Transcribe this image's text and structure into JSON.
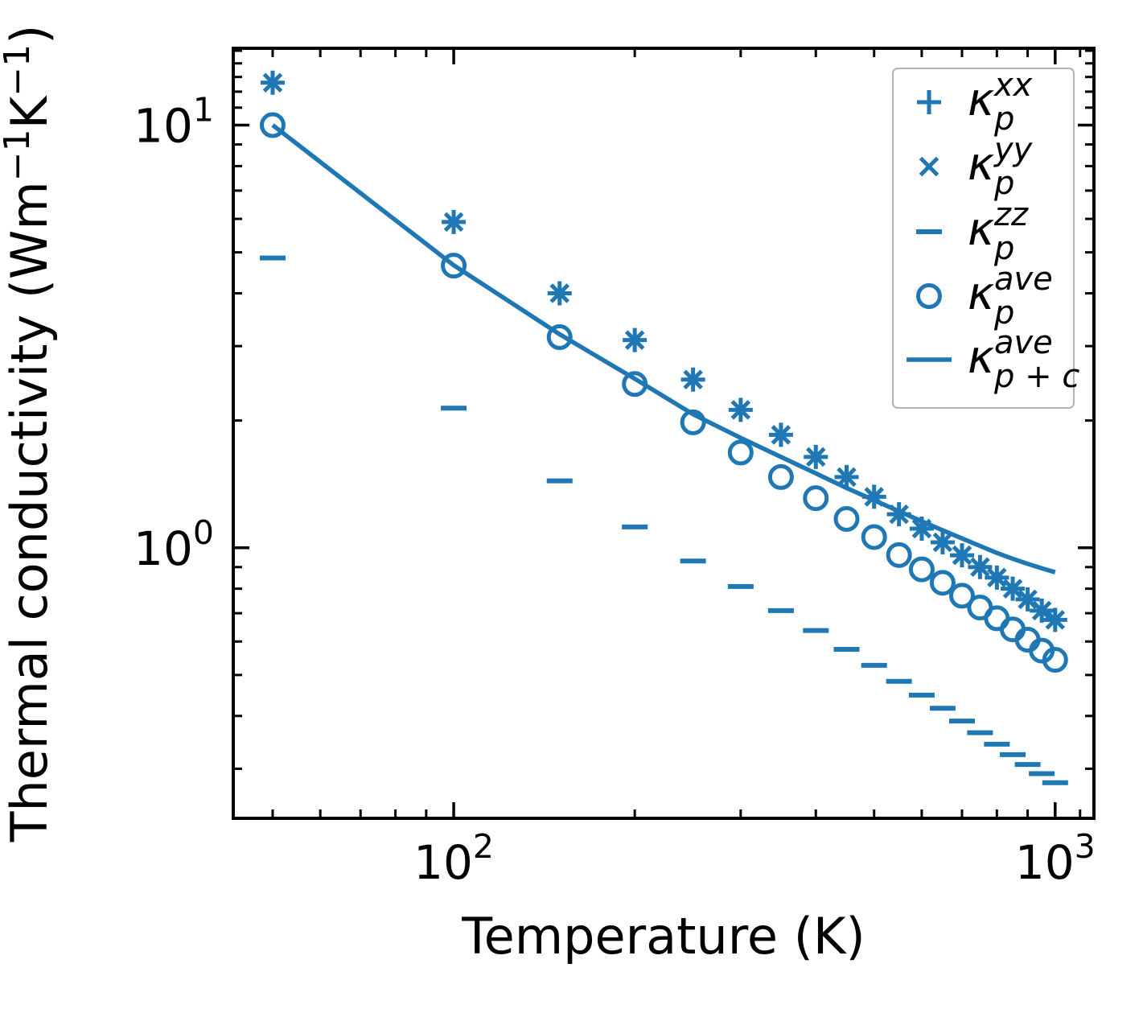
{
  "figure": {
    "background": "#ffffff",
    "series_color": "#1f77b4",
    "axis_color": "#000000",
    "legend_border_color": "#b3b3b3"
  },
  "chart_data": {
    "type": "scatter+line",
    "x_scale": "log",
    "y_scale": "log",
    "xlabel": "Temperature (K)",
    "ylabel_parts": [
      {
        "text": "Thermal conductivity (Wm"
      },
      {
        "sup": "−1"
      },
      {
        "text": "K"
      },
      {
        "sup": "−1"
      },
      {
        "text": ")"
      }
    ],
    "xlim": [
      43,
      1160
    ],
    "ylim": [
      0.229,
      15.2
    ],
    "grid": false,
    "legend_position": "upper right",
    "x_major_ticks": [
      100,
      1000
    ],
    "x_minor_ticks": [
      50,
      60,
      70,
      80,
      90,
      200,
      300,
      400,
      500,
      600,
      700,
      800,
      900,
      1100
    ],
    "y_major_ticks": [
      1,
      10
    ],
    "y_minor_ticks": [
      0.3,
      0.4,
      0.5,
      0.6,
      0.7,
      0.8,
      0.9,
      2,
      3,
      4,
      5,
      6,
      7,
      8,
      9,
      11,
      12,
      13,
      14,
      15
    ],
    "x_tick_labels": [
      {
        "at": 100,
        "mantissa": "10",
        "exponent": "2"
      },
      {
        "at": 1000,
        "mantissa": "10",
        "exponent": "3"
      }
    ],
    "y_tick_labels": [
      {
        "at": 10,
        "mantissa": "10",
        "exponent": "1"
      },
      {
        "at": 1,
        "mantissa": "10",
        "exponent": "0"
      }
    ],
    "temperatures": [
      50,
      100,
      150,
      200,
      250,
      300,
      350,
      400,
      450,
      500,
      550,
      600,
      650,
      700,
      750,
      800,
      850,
      900,
      950,
      1000
    ],
    "series": [
      {
        "name": "kappa_p_xx",
        "marker": "plus",
        "label": {
          "base": "κ",
          "sup": "xx",
          "sub": "p"
        },
        "values": [
          12.6,
          5.9,
          4.0,
          3.1,
          2.5,
          2.12,
          1.85,
          1.64,
          1.47,
          1.32,
          1.2,
          1.11,
          1.03,
          0.96,
          0.9,
          0.85,
          0.8,
          0.755,
          0.71,
          0.675
        ]
      },
      {
        "name": "kappa_p_yy",
        "marker": "cross",
        "label": {
          "base": "κ",
          "sup": "yy",
          "sub": "p"
        },
        "values": [
          12.6,
          5.9,
          4.0,
          3.1,
          2.5,
          2.12,
          1.85,
          1.64,
          1.47,
          1.32,
          1.2,
          1.11,
          1.03,
          0.96,
          0.9,
          0.85,
          0.8,
          0.755,
          0.71,
          0.675
        ]
      },
      {
        "name": "kappa_p_zz",
        "marker": "dash",
        "label": {
          "base": "κ",
          "sup": "zz",
          "sub": "p"
        },
        "values": [
          4.85,
          2.14,
          1.44,
          1.12,
          0.93,
          0.81,
          0.71,
          0.637,
          0.575,
          0.527,
          0.483,
          0.448,
          0.417,
          0.389,
          0.365,
          0.343,
          0.324,
          0.307,
          0.292,
          0.278
        ]
      },
      {
        "name": "kappa_p_ave",
        "marker": "circle",
        "label": {
          "base": "κ",
          "sup": "ave",
          "sub": "p"
        },
        "values": [
          10.0,
          4.65,
          3.15,
          2.44,
          1.98,
          1.68,
          1.47,
          1.31,
          1.17,
          1.06,
          0.961,
          0.889,
          0.826,
          0.77,
          0.722,
          0.681,
          0.641,
          0.606,
          0.571,
          0.543
        ]
      },
      {
        "name": "kappa_p_plus_c_ave",
        "marker": "line",
        "label": {
          "base": "κ",
          "sup": "ave",
          "sub": "p + c"
        },
        "values": [
          10.0,
          4.66,
          3.2,
          2.51,
          2.07,
          1.82,
          1.64,
          1.5,
          1.385,
          1.295,
          1.22,
          1.155,
          1.1,
          1.052,
          1.01,
          0.972,
          0.942,
          0.916,
          0.894,
          0.875
        ]
      }
    ]
  }
}
